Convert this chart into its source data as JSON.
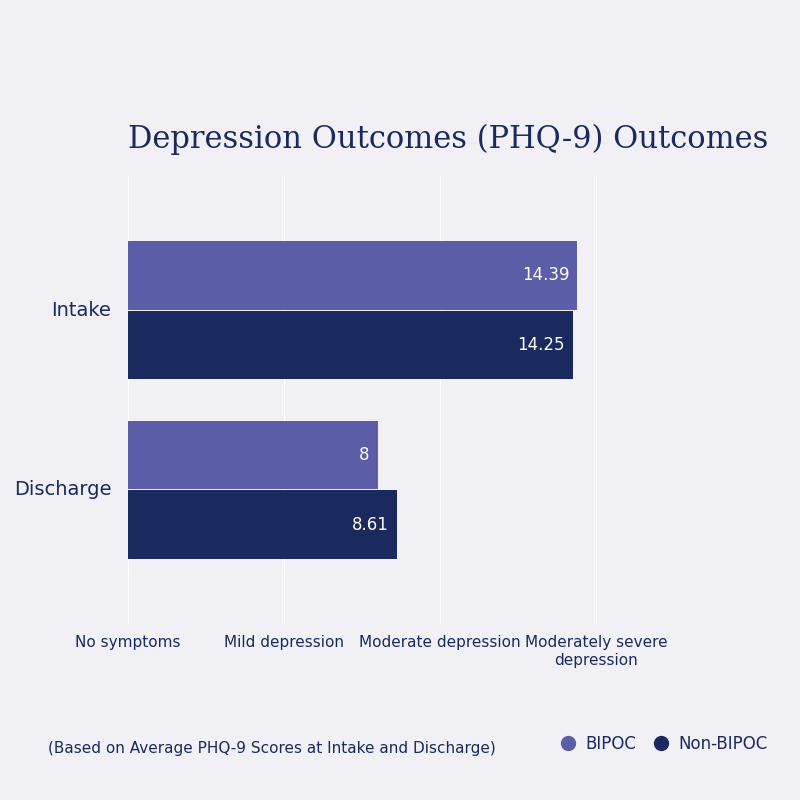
{
  "title": "Depression Outcomes (PHQ-9) Outcomes",
  "categories": [
    "Intake",
    "Discharge"
  ],
  "bipoc_values": [
    14.39,
    8.0
  ],
  "nonbipoc_values": [
    14.25,
    8.61
  ],
  "bipoc_color": "#5B5EA6",
  "nonbipoc_color": "#1B2A5E",
  "bar_height": 0.38,
  "x_tick_positions": [
    0,
    5,
    10,
    15,
    20
  ],
  "x_tick_labels": [
    "No symptoms",
    "Mild depression",
    "Moderate depression",
    "Moderately severe\ndepression",
    ""
  ],
  "x_max": 20,
  "background_color": "#F0F0F5",
  "text_color": "#1B2A5E",
  "footnote": "(Based on Average PHQ-9 Scores at Intake and Discharge)",
  "legend_bipoc": "BIPOC",
  "legend_nonbipoc": "Non-BIPOC",
  "title_fontsize": 22,
  "label_fontsize": 14,
  "tick_fontsize": 11,
  "footnote_fontsize": 11,
  "value_fontsize": 12
}
